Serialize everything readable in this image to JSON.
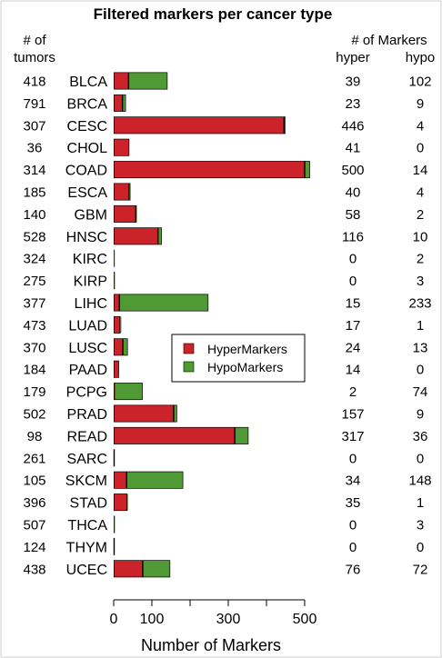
{
  "chart_data": {
    "type": "bar",
    "orientation": "horizontal",
    "stacked": true,
    "title": "Filtered markers per cancer type",
    "xlabel": "Number of Markers",
    "xlim": [
      0,
      520
    ],
    "xticks": [
      0,
      100,
      300,
      500
    ],
    "xtick_labels": [
      "0",
      "100",
      "300",
      "500"
    ],
    "tumors_header": [
      "# of",
      "tumors"
    ],
    "markers_header": "# of Markers",
    "hyper_header": "hyper",
    "hypo_header": "hypo",
    "categories": [
      "BLCA",
      "BRCA",
      "CESC",
      "CHOL",
      "COAD",
      "ESCA",
      "GBM",
      "HNSC",
      "KIRC",
      "KIRP",
      "LIHC",
      "LUAD",
      "LUSC",
      "PAAD",
      "PCPG",
      "PRAD",
      "READ",
      "SARC",
      "SKCM",
      "STAD",
      "THCA",
      "THYM",
      "UCEC"
    ],
    "tumors": [
      "418",
      "791",
      "307",
      "36",
      "314",
      "185",
      "140",
      "528",
      "324",
      "275",
      "377",
      "473",
      "370",
      "184",
      "179",
      "502",
      "98",
      "261",
      "105",
      "396",
      "507",
      "124",
      "438"
    ],
    "series": [
      {
        "name": "HyperMarkers",
        "color": "#cc2229",
        "values": [
          39,
          23,
          446,
          41,
          500,
          40,
          58,
          116,
          0,
          0,
          15,
          17,
          24,
          14,
          2,
          157,
          317,
          0,
          34,
          35,
          0,
          0,
          76
        ]
      },
      {
        "name": "HypoMarkers",
        "color": "#4f9a35",
        "values": [
          102,
          9,
          4,
          0,
          14,
          4,
          2,
          10,
          2,
          3,
          233,
          1,
          13,
          0,
          74,
          9,
          36,
          0,
          148,
          1,
          3,
          0,
          72
        ]
      }
    ],
    "hyper_labels": [
      "39",
      "23",
      "446",
      "41",
      "500",
      "40",
      "58",
      "116",
      "0",
      "0",
      "15",
      "17",
      "24",
      "14",
      "2",
      "157",
      "317",
      "0",
      "34",
      "35",
      "0",
      "0",
      "76"
    ],
    "hypo_labels": [
      "102",
      "9",
      "4",
      "0",
      "14",
      "4",
      "2",
      "10",
      "2",
      "3",
      "233",
      "1",
      "13",
      "0",
      "74",
      "9",
      "36",
      "0",
      "148",
      "1",
      "3",
      "0",
      "72"
    ],
    "legend_position": "center-right",
    "grid": false
  }
}
